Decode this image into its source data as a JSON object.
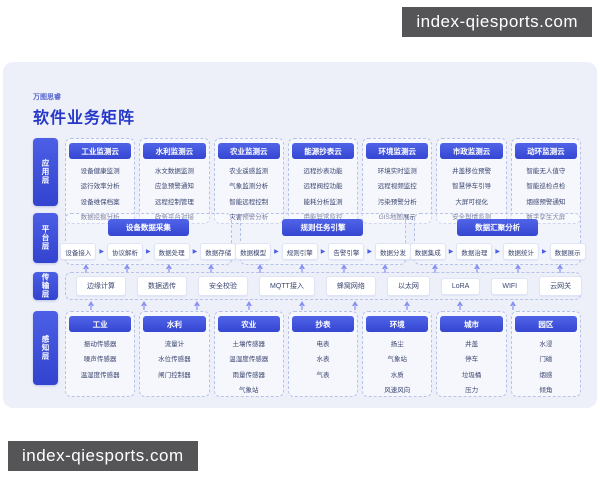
{
  "watermark": {
    "text": "index-qiesports.com"
  },
  "header": {
    "brand": "万图思睿",
    "title": "软件业务矩阵"
  },
  "colors": {
    "primary": "#3c50d9",
    "title_text": "#2537c8",
    "panel_bg": "#edf0f9",
    "watermark_bg": "#48484b",
    "arrow": "#8591f2"
  },
  "layers": {
    "application": {
      "label": "应用层",
      "cards": [
        {
          "title": "工业监测云",
          "items": [
            "设备健康监测",
            "运行效率分析",
            "设备维保档案",
            "数据挖掘分析"
          ]
        },
        {
          "title": "水利监测云",
          "items": [
            "水文数据监测",
            "应急预警通知",
            "远程控制管理",
            "政务平台对接"
          ]
        },
        {
          "title": "农业监测云",
          "items": [
            "农业遥感监测",
            "气象监测分析",
            "智能远程控制",
            "灾害预警分析"
          ]
        },
        {
          "title": "能源抄表云",
          "items": [
            "远程抄表功能",
            "远程阀控功能",
            "能耗分析监测",
            "用能异常监控"
          ]
        },
        {
          "title": "环境监测云",
          "items": [
            "环境实时监测",
            "远程视频监控",
            "污染预警分析",
            "GIS地图展示"
          ]
        },
        {
          "title": "市政监测云",
          "items": [
            "井盖移位预警",
            "智慧停车引导",
            "大屏可视化",
            "安全舆情监测"
          ]
        },
        {
          "title": "动环监测云",
          "items": [
            "智能无人值守",
            "智能巡检点检",
            "烟感预警通知",
            "数字孪生大屏"
          ]
        }
      ]
    },
    "platform": {
      "label": "平台层",
      "groups": [
        {
          "title": "设备数据采集",
          "steps": [
            "设备接入",
            "协议解析",
            "数据处理",
            "数据存储"
          ]
        },
        {
          "title": "规则任务引擎",
          "steps": [
            "数据模型",
            "规则引擎",
            "告警引擎",
            "数据分发"
          ]
        },
        {
          "title": "数据汇聚分析",
          "steps": [
            "数据集成",
            "数据治理",
            "数据统计",
            "数据展示"
          ]
        }
      ]
    },
    "transmission": {
      "label": "传输层",
      "items": [
        "边缘计算",
        "数据透传",
        "安全校验",
        "MQTT接入",
        "蜂窝网络",
        "以太网",
        "LoRA",
        "WIFI",
        "云网关"
      ]
    },
    "perception": {
      "label": "感知层",
      "cards": [
        {
          "title": "工业",
          "items": [
            "振动传感器",
            "噪声传感器",
            "温湿度传感器"
          ]
        },
        {
          "title": "水利",
          "items": [
            "流量计",
            "水位传感器",
            "闸门控制器"
          ]
        },
        {
          "title": "农业",
          "items": [
            "土壤传感器",
            "温湿度传感器",
            "雨量传感器",
            "气象站"
          ]
        },
        {
          "title": "抄表",
          "items": [
            "电表",
            "水表",
            "气表"
          ]
        },
        {
          "title": "环境",
          "items": [
            "扬尘",
            "气象站",
            "水质",
            "风速风向"
          ]
        },
        {
          "title": "城市",
          "items": [
            "井盖",
            "停车",
            "垃圾桶",
            "压力"
          ]
        },
        {
          "title": "园区",
          "items": [
            "水浸",
            "门磁",
            "烟感",
            "倾角"
          ]
        }
      ]
    }
  }
}
